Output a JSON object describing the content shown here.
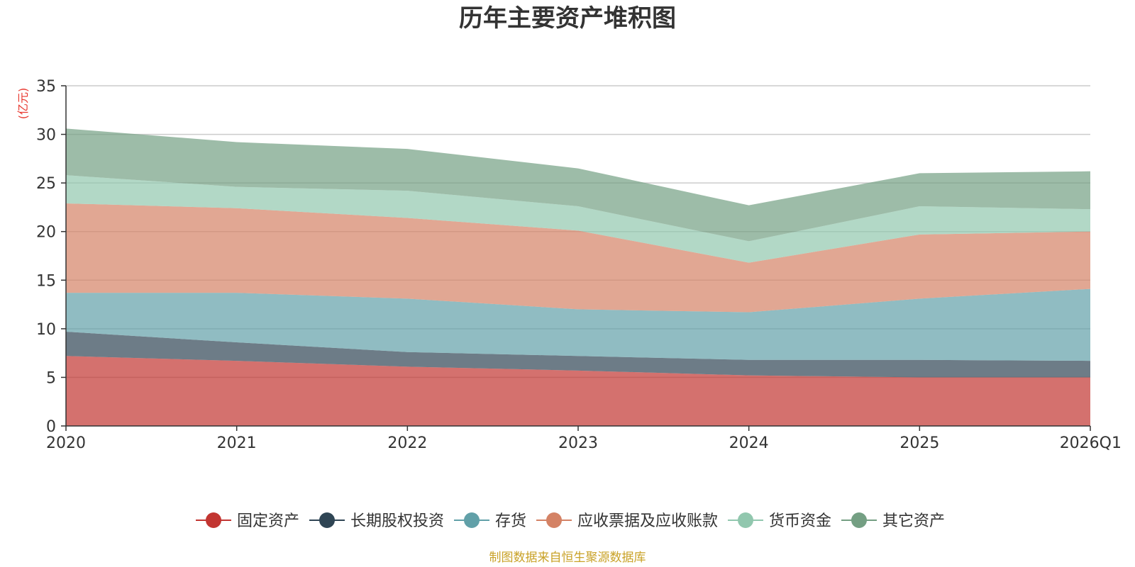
{
  "chart_data": {
    "type": "area",
    "stacked": true,
    "title": "历年主要资产堆积图",
    "ylabel": "(亿元)",
    "xlabel": "",
    "categories": [
      "2020",
      "2021",
      "2022",
      "2023",
      "2024",
      "2025",
      "2026Q1"
    ],
    "ylim": [
      0,
      35
    ],
    "yticks": [
      0,
      5,
      10,
      15,
      20,
      25,
      30,
      35
    ],
    "grid": true,
    "legend_position": "bottom",
    "series": [
      {
        "name": "固定资产",
        "color": "#c23531",
        "values": [
          7.2,
          6.7,
          6.1,
          5.7,
          5.2,
          5.0,
          5.0
        ]
      },
      {
        "name": "长期股权投资",
        "color": "#2f4554",
        "values": [
          2.5,
          1.9,
          1.5,
          1.5,
          1.6,
          1.8,
          1.7
        ]
      },
      {
        "name": "存货",
        "color": "#61a0a8",
        "values": [
          4.0,
          5.1,
          5.5,
          4.8,
          4.9,
          6.3,
          7.4
        ]
      },
      {
        "name": "应收票据及应收账款",
        "color": "#d48265",
        "values": [
          9.2,
          8.7,
          8.3,
          8.1,
          5.1,
          6.6,
          5.9
        ]
      },
      {
        "name": "货币资金",
        "color": "#91c7ae",
        "values": [
          2.9,
          2.2,
          2.8,
          2.5,
          2.2,
          2.9,
          2.3
        ]
      },
      {
        "name": "其它资产",
        "color": "#749f83",
        "values": [
          4.8,
          4.6,
          4.3,
          3.9,
          3.7,
          3.4,
          3.9
        ]
      }
    ]
  },
  "footer": {
    "source_text": "制图数据来自恒生聚源数据库"
  }
}
